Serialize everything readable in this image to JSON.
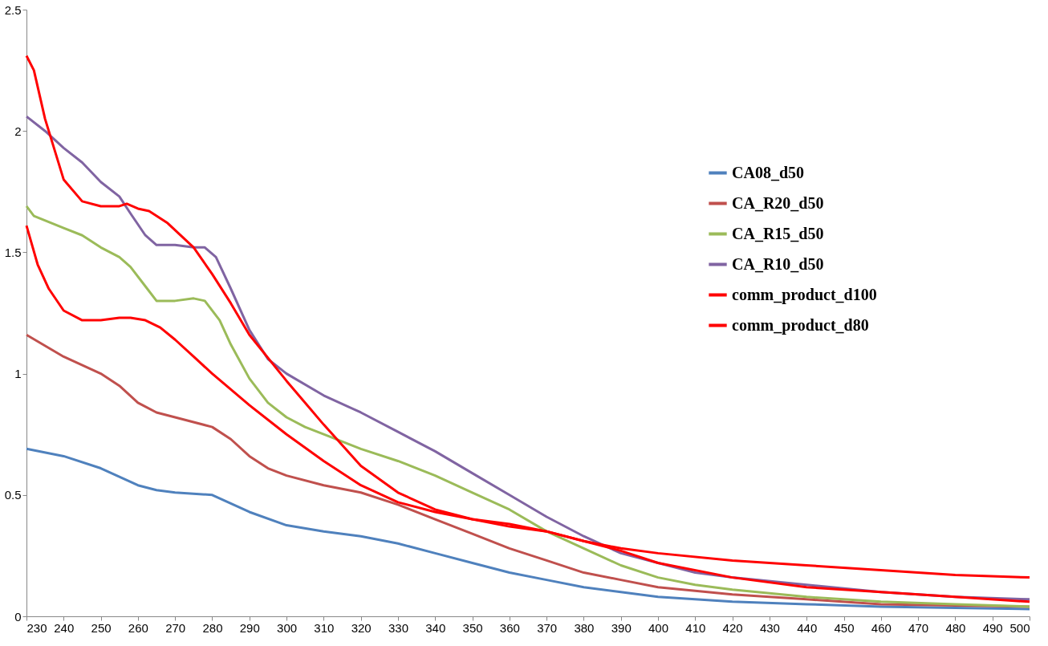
{
  "chart_data": {
    "type": "line",
    "xlim": [
      230,
      500
    ],
    "xticks": [
      230,
      240,
      250,
      260,
      270,
      280,
      290,
      300,
      310,
      320,
      330,
      340,
      350,
      360,
      370,
      380,
      390,
      400,
      410,
      420,
      430,
      440,
      450,
      460,
      470,
      480,
      490,
      500
    ],
    "ylim": [
      0,
      2.5
    ],
    "yticks": [
      0,
      0.5,
      1,
      1.5,
      2,
      2.5
    ],
    "grid": false,
    "legend": "top right",
    "marker": "none",
    "line_style": "solid",
    "series": [
      {
        "name": "CA08_d50",
        "color": "#4f81bd",
        "x": [
          230,
          240,
          250,
          260,
          265,
          270,
          280,
          290,
          300,
          310,
          320,
          330,
          340,
          350,
          360,
          370,
          380,
          390,
          400,
          420,
          440,
          460,
          480,
          500
        ],
        "values": [
          0.69,
          0.66,
          0.61,
          0.54,
          0.52,
          0.51,
          0.5,
          0.43,
          0.375,
          0.35,
          0.33,
          0.3,
          0.26,
          0.22,
          0.18,
          0.15,
          0.12,
          0.1,
          0.08,
          0.06,
          0.05,
          0.04,
          0.035,
          0.03
        ]
      },
      {
        "name": "CA_R20_d50",
        "color": "#c0504d",
        "x": [
          230,
          240,
          250,
          255,
          260,
          265,
          270,
          280,
          285,
          290,
          295,
          300,
          310,
          320,
          330,
          340,
          350,
          360,
          370,
          380,
          390,
          400,
          420,
          440,
          460,
          480,
          500
        ],
        "values": [
          1.16,
          1.07,
          1.0,
          0.95,
          0.88,
          0.84,
          0.82,
          0.78,
          0.73,
          0.66,
          0.61,
          0.58,
          0.54,
          0.51,
          0.46,
          0.4,
          0.34,
          0.28,
          0.23,
          0.18,
          0.15,
          0.12,
          0.09,
          0.07,
          0.05,
          0.045,
          0.04
        ]
      },
      {
        "name": "CA_R15_d50",
        "color": "#9bbb59",
        "x": [
          230,
          232,
          240,
          245,
          250,
          255,
          258,
          262,
          265,
          270,
          275,
          278,
          282,
          285,
          290,
          295,
          300,
          305,
          310,
          320,
          330,
          340,
          350,
          360,
          370,
          380,
          390,
          400,
          410,
          420,
          440,
          460,
          480,
          500
        ],
        "values": [
          1.69,
          1.65,
          1.6,
          1.57,
          1.52,
          1.48,
          1.44,
          1.36,
          1.3,
          1.3,
          1.31,
          1.3,
          1.22,
          1.12,
          0.98,
          0.88,
          0.82,
          0.78,
          0.75,
          0.69,
          0.64,
          0.58,
          0.51,
          0.44,
          0.35,
          0.28,
          0.21,
          0.16,
          0.13,
          0.11,
          0.08,
          0.06,
          0.05,
          0.04
        ]
      },
      {
        "name": "CA_R10_d50",
        "color": "#8064a2",
        "x": [
          230,
          235,
          240,
          245,
          250,
          255,
          258,
          262,
          265,
          270,
          275,
          278,
          281,
          285,
          290,
          295,
          300,
          310,
          320,
          330,
          340,
          350,
          360,
          370,
          380,
          390,
          400,
          410,
          420,
          440,
          460,
          480,
          500
        ],
        "values": [
          2.06,
          2.0,
          1.93,
          1.87,
          1.79,
          1.73,
          1.66,
          1.57,
          1.53,
          1.53,
          1.52,
          1.52,
          1.48,
          1.35,
          1.18,
          1.06,
          1.0,
          0.91,
          0.84,
          0.76,
          0.68,
          0.59,
          0.5,
          0.41,
          0.33,
          0.26,
          0.22,
          0.18,
          0.16,
          0.13,
          0.1,
          0.08,
          0.07
        ]
      },
      {
        "name": "comm_product_d100",
        "color": "#ff0000",
        "x": [
          230,
          232,
          235,
          240,
          245,
          250,
          255,
          257,
          260,
          263,
          268,
          275,
          280,
          285,
          290,
          300,
          310,
          320,
          330,
          340,
          350,
          360,
          370,
          380,
          390,
          400,
          420,
          440,
          460,
          480,
          500
        ],
        "values": [
          2.31,
          2.25,
          2.05,
          1.8,
          1.71,
          1.69,
          1.69,
          1.7,
          1.68,
          1.67,
          1.62,
          1.52,
          1.41,
          1.29,
          1.16,
          0.97,
          0.79,
          0.62,
          0.51,
          0.44,
          0.4,
          0.37,
          0.35,
          0.31,
          0.27,
          0.22,
          0.16,
          0.12,
          0.1,
          0.08,
          0.06
        ]
      },
      {
        "name": "comm_product_d80",
        "color": "#ff0000",
        "x": [
          230,
          233,
          236,
          240,
          245,
          250,
          255,
          258,
          262,
          266,
          270,
          275,
          280,
          290,
          300,
          310,
          320,
          330,
          340,
          350,
          360,
          370,
          380,
          390,
          400,
          420,
          440,
          460,
          480,
          500
        ],
        "values": [
          1.61,
          1.45,
          1.35,
          1.26,
          1.22,
          1.22,
          1.23,
          1.23,
          1.22,
          1.19,
          1.14,
          1.07,
          1.0,
          0.87,
          0.75,
          0.64,
          0.54,
          0.47,
          0.43,
          0.4,
          0.38,
          0.35,
          0.31,
          0.28,
          0.26,
          0.23,
          0.21,
          0.19,
          0.17,
          0.16
        ]
      }
    ]
  }
}
